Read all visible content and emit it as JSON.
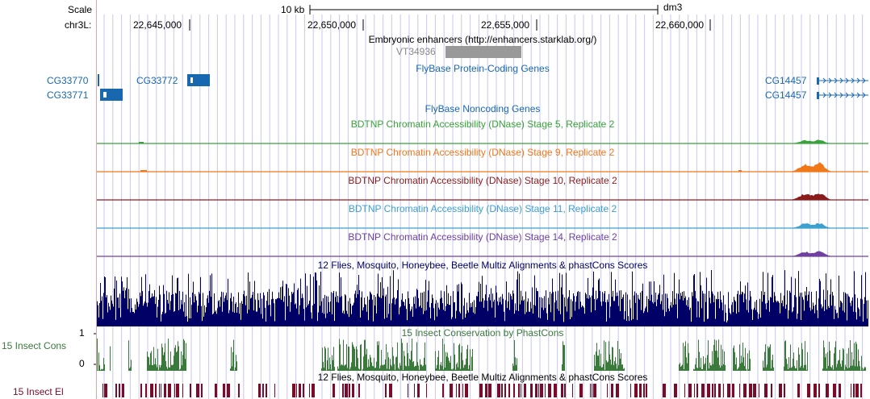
{
  "ruler": {
    "scale_label": "Scale",
    "scale_value": "10 kb",
    "assembly": "dm3",
    "chrom_label": "chr3L:",
    "positions": [
      "22,645,000",
      "22,650,000",
      "22,655,000",
      "22,660,000"
    ]
  },
  "tracks": {
    "enhancers": {
      "title": "Embryonic enhancers (http://enhancers.starklab.org/)",
      "feature": "VT34936"
    },
    "flybase_coding": {
      "title": "FlyBase Protein-Coding Genes",
      "genes": [
        "CG33770",
        "CG33772",
        "CG33771",
        "CG14457",
        "CG14457"
      ]
    },
    "flybase_noncoding": {
      "title": "FlyBase Noncoding Genes"
    },
    "dnase": [
      {
        "title": "BDTNP Chromatin Accessibility (DNase) Stage 5, Replicate 2",
        "color": "#3aa23a"
      },
      {
        "title": "BDTNP Chromatin Accessibility (DNase) Stage 9, Replicate 2",
        "color": "#f07818"
      },
      {
        "title": "BDTNP Chromatin Accessibility (DNase) Stage 10, Replicate 2",
        "color": "#8c1c1c"
      },
      {
        "title": "BDTNP Chromatin Accessibility (DNase) Stage 11, Replicate 2",
        "color": "#3aa0d0"
      },
      {
        "title": "BDTNP Chromatin Accessibility (DNase) Stage 14, Replicate 2",
        "color": "#7040a0"
      }
    ],
    "multiz": {
      "title": "12 Flies, Mosquito, Honeybee, Beetle Multiz Alignments & phastCons Scores",
      "color": "#000066"
    },
    "insect_cons": {
      "title": "15 Insect Conservation by PhastCons",
      "side_label": "15 Insect Cons",
      "ymax": "1",
      "ymin": "0",
      "color": "#3a7a3a"
    },
    "insect_el": {
      "title": "12 Flies, Mosquito, Honeybee, Beetle Multiz Alignments & phastCons Scores",
      "side_label": "15 Insect El",
      "color": "#7a0c2a"
    }
  },
  "colors": {
    "gene": "#1868b0",
    "grid": "#c8c8f0",
    "left_margin_line": "#f0a0a0"
  }
}
